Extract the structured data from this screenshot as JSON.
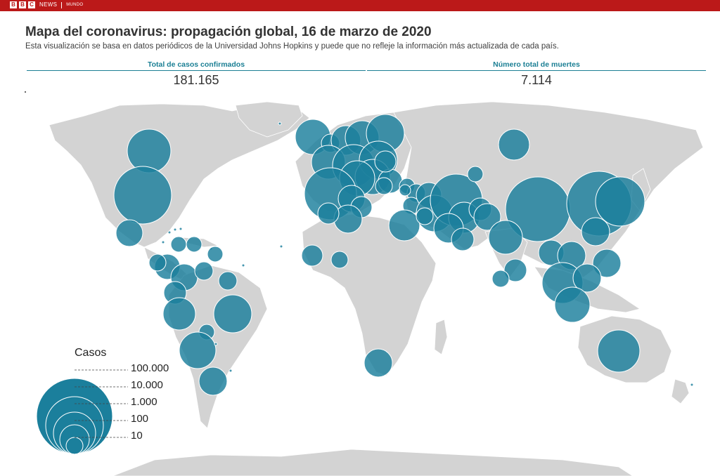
{
  "brand": {
    "logo": "BBC",
    "news": "NEWS",
    "section": "MUNDO"
  },
  "header": {
    "title": "Mapa del coronavirus: propagación global, 16 de marzo de 2020",
    "subtitle": "Esta visualización se basa en datos periódicos de la Universidad Johns Hopkins y puede que no refleje la información más actualizada de cada país."
  },
  "stats": {
    "confirmed_label": "Total de casos confirmados",
    "confirmed_value": "181.165",
    "deaths_label": "Número total de muertes",
    "deaths_value": "7.114"
  },
  "legend": {
    "title": "Casos",
    "levels": [
      "100.000",
      "10.000",
      "1.000",
      "100",
      "10"
    ]
  },
  "colors": {
    "bubble": "#1b7f9c",
    "land": "#d3d3d3",
    "accent": "#bb1919",
    "stat": "#1b7f94"
  }
}
